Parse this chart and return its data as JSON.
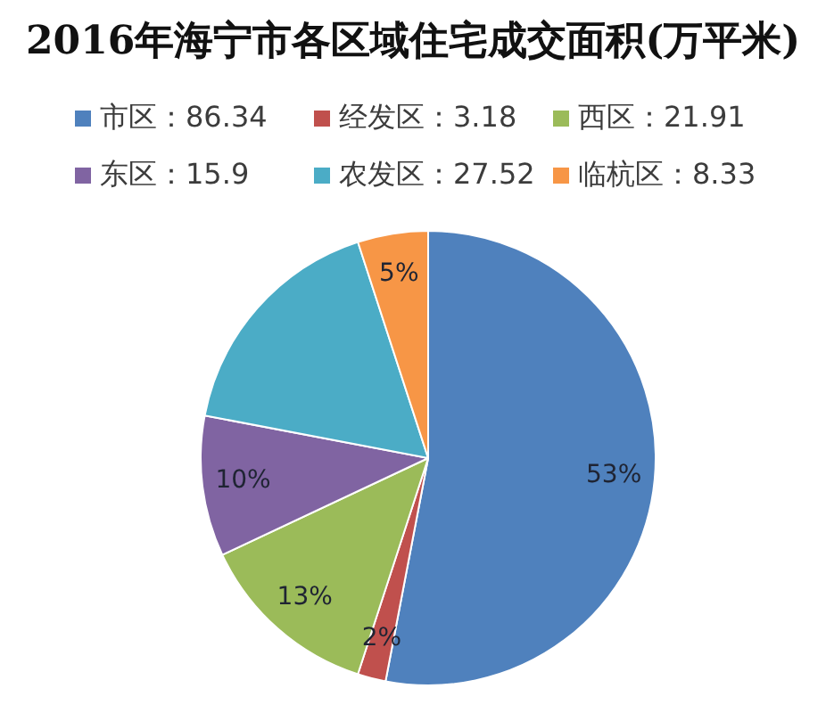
{
  "chart_data": {
    "type": "pie",
    "title": "2016年海宁市各区域住宅成交面积(万平米)",
    "categories": [
      "市区：86.34",
      "经发区：3.18",
      "西区：21.91",
      "东区：15.9",
      "农发区：27.52",
      "临杭区：8.33"
    ],
    "values": [
      53,
      2,
      13,
      10,
      17,
      5
    ],
    "colors": [
      "#4f81bd",
      "#c0504d",
      "#9bbb59",
      "#8064a2",
      "#4bacc6",
      "#f79646"
    ],
    "value_labels": [
      "53%",
      "2%",
      "13%",
      "10%",
      null,
      "5%"
    ],
    "legend": "top"
  }
}
